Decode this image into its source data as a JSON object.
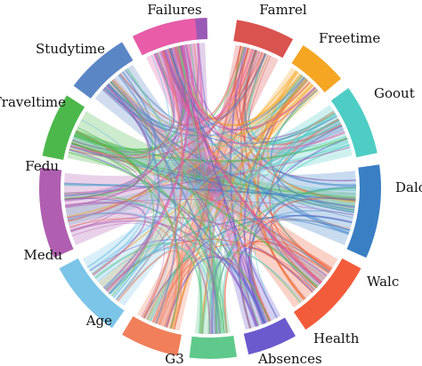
{
  "segments": [
    {
      "label": "Failures",
      "color": "#9b59b6"
    },
    {
      "label": "Famrel",
      "color": "#d9534f"
    },
    {
      "label": "Freetime",
      "color": "#f5a623"
    },
    {
      "label": "Goout",
      "color": "#4ecdc4"
    },
    {
      "label": "Dalc",
      "color": "#3a7fc4"
    },
    {
      "label": "Walc",
      "color": "#f25c3b"
    },
    {
      "label": "Health",
      "color": "#6a5acd"
    },
    {
      "label": "Absences",
      "color": "#5fc98b"
    },
    {
      "label": "G3",
      "color": "#f07f5a"
    },
    {
      "label": "Age",
      "color": "#7cc5e8"
    },
    {
      "label": "Medu",
      "color": "#b05fb0"
    },
    {
      "label": "Fedu",
      "color": "#4cb84c"
    },
    {
      "label": "Traveltime",
      "color": "#5b86c5"
    },
    {
      "label": "Studytime",
      "color": "#e85ca8"
    }
  ]
}
